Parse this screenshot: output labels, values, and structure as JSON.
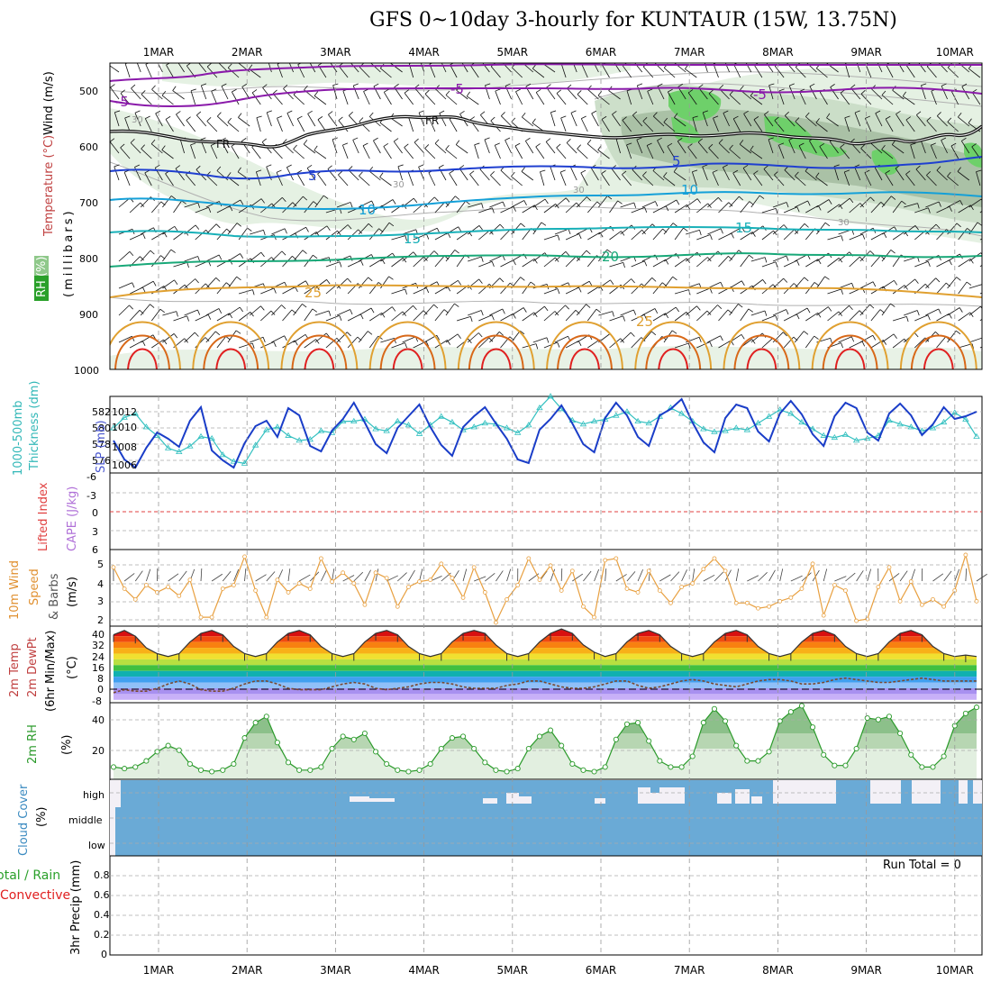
{
  "title": "GFS 0~10day 3-hourly for KUNTAUR (15W, 13.75N)",
  "dates": [
    "1MAR",
    "2MAR",
    "3MAR",
    "4MAR",
    "5MAR",
    "6MAR",
    "7MAR",
    "8MAR",
    "9MAR",
    "10MAR"
  ],
  "colors": {
    "gray_grid": "#a0a0a0",
    "rh_fill": "#dfeedd",
    "rh_dark": "#a9c2a4",
    "green": "#66cc66",
    "purple": "#8a1aaa",
    "blue": "#1f3fd0",
    "cyan": "#14a0d8",
    "teal": "#18b0b8",
    "seagreen": "#18a878",
    "orange": "#e0a030",
    "dorange": "#d86818",
    "red": "#e02020",
    "cloud": "#6aaad6",
    "slp": "#1a3dc8",
    "thick": "#33c0c0",
    "wind10": "#e8a040",
    "rh2m": "#2a9a2a"
  },
  "panels": {
    "upper": {
      "labels": {
        "wind": "Wind (m/s)",
        "temp": "Temperature (°C)",
        "rh": "RH (%)",
        "mb": "(millibars)"
      },
      "y_ticks": [
        "500",
        "600",
        "700",
        "800",
        "900",
        "1000"
      ],
      "contour_labels": {
        "m5": "-5",
        "fr": "FR",
        "p5": "5",
        "p10": "10",
        "p15": "15",
        "p20": "20",
        "p25": "25",
        "p25b": "25",
        "rh30": "30",
        "rh30b": "30",
        "rh30c": "30",
        "rh30d": "30"
      }
    },
    "slp": {
      "labels": {
        "thick": "1000-500mb",
        "thick2": "Thickness (dm)",
        "slp": "SLP (mb)"
      },
      "left_ticks": [
        "582",
        "580",
        "578",
        "576"
      ],
      "right_ticks": [
        "1012",
        "1010",
        "1008",
        "1006"
      ]
    },
    "li": {
      "labels": {
        "li": "Lifted Index",
        "cape": "CAPE (J/kg)"
      },
      "ticks": [
        "-6",
        "-3",
        "0",
        "3",
        "6"
      ]
    },
    "wind10": {
      "labels": {
        "a": "10m Wind",
        "b": "Speed",
        "c": "& Barbs",
        "d": "(m/s)"
      },
      "ticks": [
        "5",
        "4",
        "3",
        "2"
      ]
    },
    "temp2m": {
      "labels": {
        "a": "2m Temp",
        "b": "2m DewPt",
        "c": "(6hr Min/Max)",
        "d": "(°C)"
      },
      "ticks": [
        "40",
        "32",
        "24",
        "16",
        "8",
        "0",
        "-8"
      ]
    },
    "rh2m": {
      "labels": {
        "a": "2m RH",
        "b": "(%)"
      },
      "ticks": [
        "40",
        "20"
      ]
    },
    "cloud": {
      "labels": {
        "a": "Cloud Cover",
        "b": "(%)"
      },
      "levels": [
        "high",
        "middle",
        "low"
      ]
    },
    "precip": {
      "labels": {
        "a": "Total / Rain",
        "b": "Convective",
        "c": "3hr Precip (mm)"
      },
      "run_total": "Run Total = 0",
      "ticks": [
        "0.8",
        "0.6",
        "0.4",
        "0.2",
        "0"
      ]
    }
  },
  "chart_data": [
    {
      "type": "line",
      "title": "SLP (mb) and 1000-500mb Thickness (dm)",
      "x": [
        0,
        3,
        6,
        9,
        12,
        15,
        18,
        21,
        24,
        27,
        30,
        33,
        36,
        39,
        42,
        45,
        48,
        51,
        54,
        57,
        60,
        63,
        66,
        69,
        72,
        75,
        78,
        81,
        84,
        87,
        90,
        93,
        96,
        99,
        102,
        105,
        108,
        111,
        114,
        117,
        120,
        123,
        126,
        129,
        132,
        135,
        138,
        141,
        144,
        147,
        150,
        153,
        156,
        159,
        162,
        165,
        168,
        171,
        174,
        177,
        180,
        183,
        186,
        189,
        192,
        195,
        198,
        201,
        204,
        207,
        210,
        213,
        216,
        219,
        222,
        225,
        228,
        231,
        234,
        237
      ],
      "series": [
        {
          "name": "SLP (mb)",
          "values": [
            1008.6,
            1006.5,
            1005.6,
            1007.8,
            1009.5,
            1008.8,
            1007.9,
            1010.8,
            1012.3,
            1007.5,
            1006.4,
            1005.6,
            1008.3,
            1010.2,
            1010.8,
            1009.0,
            1012.2,
            1011.4,
            1008.0,
            1007.4,
            1009.7,
            1011.0,
            1012.8,
            1010.6,
            1008.2,
            1007.2,
            1010.0,
            1011.3,
            1012.6,
            1010.1,
            1008.1,
            1006.9,
            1010.1,
            1011.3,
            1012.3,
            1010.5,
            1008.8,
            1006.5,
            1006.1,
            1009.8,
            1011.0,
            1012.5,
            1010.5,
            1008.2,
            1007.3,
            1011.1,
            1012.8,
            1011.4,
            1009.0,
            1008.0,
            1011.4,
            1012.1,
            1013.2,
            1010.6,
            1008.4,
            1007.3,
            1011.1,
            1012.6,
            1012.2,
            1009.6,
            1008.5,
            1011.6,
            1013.0,
            1011.5,
            1009.3,
            1008.0,
            1011.3,
            1012.8,
            1012.2,
            1009.5,
            1008.6,
            1011.6,
            1012.7,
            1011.4,
            1009.2,
            1010.4,
            1012.3,
            1011.0,
            1011.3,
            1011.8
          ]
        },
        {
          "name": "Thickness (dm)",
          "values": [
            579.7,
            580.8,
            581.2,
            579.8,
            578.9,
            577.6,
            577.2,
            577.8,
            578.8,
            578.6,
            576.9,
            576.2,
            576.0,
            577.9,
            579.5,
            579.8,
            578.9,
            578.4,
            578.5,
            579.4,
            579.2,
            580.4,
            580.4,
            580.6,
            579.6,
            579.4,
            580.4,
            580.0,
            579.1,
            580.0,
            580.9,
            580.3,
            579.5,
            579.8,
            580.2,
            580.1,
            579.7,
            579.2,
            580.0,
            581.8,
            583.0,
            581.7,
            580.5,
            580.1,
            580.4,
            580.6,
            581.0,
            581.4,
            580.4,
            580.2,
            580.9,
            581.8,
            581.2,
            580.4,
            579.6,
            579.3,
            579.4,
            579.7,
            579.5,
            580.2,
            580.9,
            581.6,
            581.2,
            580.3,
            579.6,
            578.9,
            578.7,
            579.0,
            578.4,
            578.6,
            578.9,
            580.5,
            580.1,
            579.8,
            579.4,
            579.7,
            580.3,
            581.3,
            580.6,
            578.8
          ]
        }
      ],
      "ylim_slp": [
        1005,
        1013.5
      ],
      "ylim_thick": [
        575,
        583
      ]
    },
    {
      "type": "line",
      "title": "10m Wind Speed (m/s)",
      "x": [
        0,
        3,
        6,
        9,
        12,
        15,
        18,
        21,
        24,
        27,
        30,
        33,
        36,
        39,
        42,
        45,
        48,
        51,
        54,
        57,
        60,
        63,
        66,
        69,
        72,
        75,
        78,
        81,
        84,
        87,
        90,
        93,
        96,
        99,
        102,
        105,
        108,
        111,
        114,
        117,
        120,
        123,
        126,
        129,
        132,
        135,
        138,
        141,
        144,
        147,
        150,
        153,
        156,
        159,
        162,
        165,
        168,
        171,
        174,
        177,
        180,
        183,
        186,
        189,
        192,
        195,
        198,
        201,
        204,
        207,
        210,
        213,
        216,
        219,
        222,
        225,
        228,
        231,
        234,
        237
      ],
      "series": [
        {
          "name": "10m Wind Speed",
          "values": [
            4.8,
            3.6,
            3.0,
            3.8,
            3.4,
            3.7,
            3.2,
            4.1,
            2.0,
            2.0,
            3.6,
            3.8,
            5.4,
            3.5,
            2.0,
            4.1,
            3.4,
            3.9,
            3.6,
            5.3,
            4.0,
            4.5,
            3.9,
            2.7,
            4.5,
            4.2,
            2.6,
            3.7,
            4.0,
            4.1,
            5.0,
            4.2,
            3.1,
            4.8,
            3.4,
            1.7,
            3.0,
            3.8,
            5.3,
            4.1,
            4.9,
            3.5,
            4.6,
            2.6,
            2.0,
            5.2,
            5.3,
            3.6,
            3.4,
            4.6,
            3.5,
            2.8,
            3.7,
            3.9,
            4.7,
            5.3,
            4.6,
            2.8,
            2.8,
            2.5,
            2.6,
            2.9,
            3.1,
            3.6,
            5.0,
            2.1,
            3.8,
            3.5,
            1.8,
            1.9,
            3.7,
            4.8,
            2.9,
            4.0,
            2.7,
            3.0,
            2.6,
            3.5,
            5.5,
            2.9
          ]
        }
      ],
      "ylim": [
        1.5,
        5.8
      ]
    },
    {
      "type": "area",
      "title": "2m Temp and DewPt (°C)",
      "x": [
        0,
        3,
        6,
        9,
        12,
        15,
        18,
        21,
        24,
        27,
        30,
        33,
        36,
        39,
        42,
        45,
        48,
        51,
        54,
        57,
        60,
        63,
        66,
        69,
        72,
        75,
        78,
        81,
        84,
        87,
        90,
        93,
        96,
        99,
        102,
        105,
        108,
        111,
        114,
        117,
        120,
        123,
        126,
        129,
        132,
        135,
        138,
        141,
        144,
        147,
        150,
        153,
        156,
        159,
        162,
        165,
        168,
        171,
        174,
        177,
        180,
        183,
        186,
        189,
        192,
        195,
        198,
        201,
        204,
        207,
        210,
        213,
        216,
        219,
        222,
        225,
        228,
        231,
        234,
        237
      ],
      "series": [
        {
          "name": "2m Temp",
          "values": [
            37,
            40,
            36,
            28,
            24,
            22,
            24,
            32,
            38,
            40,
            37,
            29,
            24,
            22,
            24,
            32,
            38,
            40,
            37,
            29,
            24,
            22,
            24,
            32,
            38,
            40,
            37,
            29,
            24,
            22,
            24,
            32,
            38,
            40,
            38,
            30,
            24,
            22,
            24,
            32,
            38,
            41,
            38,
            30,
            25,
            22,
            24,
            32,
            38,
            40,
            37,
            29,
            24,
            22,
            24,
            32,
            38,
            40,
            37,
            29,
            24,
            22,
            24,
            32,
            38,
            40,
            37,
            29,
            24,
            22,
            24,
            32,
            38,
            40,
            37,
            29,
            24,
            22,
            23,
            22
          ]
        },
        {
          "name": "2m DewPt",
          "values": [
            -3,
            -1,
            -2,
            -2,
            0,
            3,
            5,
            3,
            -1,
            -2,
            -2,
            0,
            3,
            5,
            5,
            3,
            0,
            -1,
            -1,
            -1,
            1,
            3,
            4,
            3,
            0,
            -1,
            0,
            1,
            3,
            4,
            4,
            3,
            1,
            0,
            0,
            0,
            2,
            3,
            5,
            5,
            3,
            1,
            0,
            0,
            1,
            3,
            5,
            5,
            2,
            0,
            1,
            3,
            5,
            6,
            5,
            3,
            2,
            1,
            3,
            5,
            6,
            6,
            5,
            3,
            3,
            4,
            6,
            7,
            6,
            5,
            4,
            4,
            5,
            6,
            7,
            6,
            5,
            5,
            5,
            5
          ]
        }
      ],
      "ylim": [
        -10,
        43
      ]
    },
    {
      "type": "area",
      "title": "2m RH (%)",
      "x": [
        0,
        3,
        6,
        9,
        12,
        15,
        18,
        21,
        24,
        27,
        30,
        33,
        36,
        39,
        42,
        45,
        48,
        51,
        54,
        57,
        60,
        63,
        66,
        69,
        72,
        75,
        78,
        81,
        84,
        87,
        90,
        93,
        96,
        99,
        102,
        105,
        108,
        111,
        114,
        117,
        120,
        123,
        126,
        129,
        132,
        135,
        138,
        141,
        144,
        147,
        150,
        153,
        156,
        159,
        162,
        165,
        168,
        171,
        174,
        177,
        180,
        183,
        186,
        189,
        192,
        195,
        198,
        201,
        204,
        207,
        210,
        213,
        216,
        219,
        222,
        225,
        228,
        231,
        234,
        237
      ],
      "series": [
        {
          "name": "2m RH",
          "values": [
            8,
            7,
            8,
            12,
            18,
            22,
            19,
            10,
            6,
            5,
            6,
            10,
            27,
            37,
            41,
            24,
            11,
            6,
            6,
            8,
            20,
            28,
            26,
            30,
            18,
            10,
            6,
            5,
            6,
            10,
            20,
            27,
            28,
            20,
            11,
            6,
            5,
            7,
            20,
            28,
            32,
            22,
            10,
            6,
            5,
            8,
            26,
            36,
            37,
            25,
            12,
            8,
            8,
            15,
            37,
            46,
            38,
            22,
            12,
            12,
            18,
            38,
            44,
            48,
            34,
            16,
            9,
            9,
            20,
            40,
            39,
            41,
            30,
            16,
            8,
            8,
            15,
            35,
            43,
            47
          ]
        }
      ],
      "ylim": [
        0,
        50
      ]
    }
  ]
}
